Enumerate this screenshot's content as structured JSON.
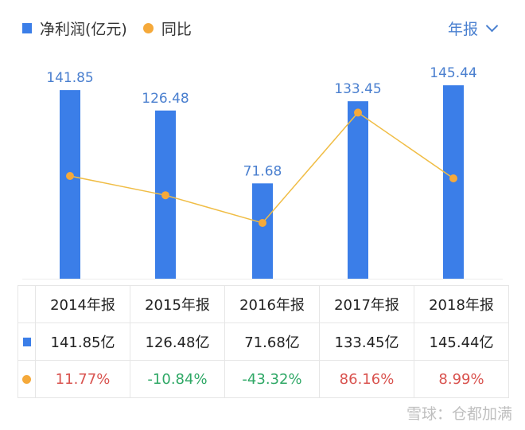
{
  "legend": {
    "bar_label": "净利润(亿元)",
    "line_label": "同比"
  },
  "period_selector": "年报",
  "colors": {
    "bar": "#3b7ee8",
    "line": "#f0bd45",
    "dot": "#f5a93a",
    "positive": "#d9534f",
    "negative": "#2fa866"
  },
  "chart_data": {
    "type": "bar+line",
    "categories": [
      "2014年报",
      "2015年报",
      "2016年报",
      "2017年报",
      "2018年报"
    ],
    "series": [
      {
        "name": "净利润(亿元)",
        "type": "bar",
        "values": [
          141.85,
          126.48,
          71.68,
          133.45,
          145.44
        ],
        "labels": [
          "141.85",
          "126.48",
          "71.68",
          "133.45",
          "145.44"
        ]
      },
      {
        "name": "同比",
        "type": "line",
        "unit": "%",
        "values": [
          11.77,
          -10.84,
          -43.32,
          86.16,
          8.99
        ]
      }
    ]
  },
  "table": {
    "headers": [
      "2014年报",
      "2015年报",
      "2016年报",
      "2017年报",
      "2018年报"
    ],
    "profit_row": [
      "141.85亿",
      "126.48亿",
      "71.68亿",
      "133.45亿",
      "145.44亿"
    ],
    "yoy_row": [
      "11.77%",
      "-10.84%",
      "-43.32%",
      "86.16%",
      "8.99%"
    ]
  },
  "watermark": "雪球：仓都加满"
}
